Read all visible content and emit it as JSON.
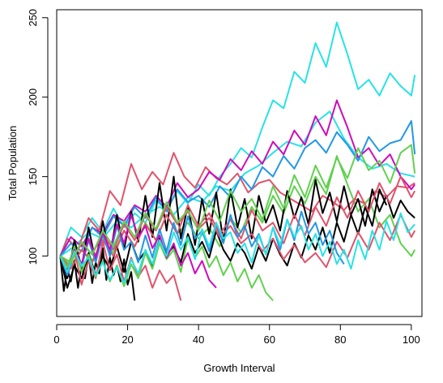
{
  "chart_data": {
    "type": "line",
    "title": "",
    "xlabel": "Growth Interval",
    "ylabel": "Total Population",
    "xlim": [
      0,
      103
    ],
    "ylim": [
      62,
      255
    ],
    "xticks": [
      0,
      20,
      40,
      60,
      80,
      100
    ],
    "yticks": [
      100,
      150,
      200,
      250
    ],
    "grid": false,
    "legend": "none",
    "colors": [
      "#000000",
      "#df536b",
      "#61d04f",
      "#2297e6",
      "#28e2e5",
      "#cd0bbc"
    ],
    "series": [
      {
        "color": "#28e2e5",
        "x": [
          1,
          4,
          7,
          10,
          13,
          16,
          19,
          22,
          25,
          28,
          31,
          34,
          37,
          40,
          43,
          46,
          49,
          52,
          55,
          58,
          61,
          64,
          67,
          70,
          73,
          76,
          79,
          82,
          85,
          88,
          91,
          94,
          97,
          100,
          101
        ],
        "y": [
          100,
          118,
          112,
          124,
          115,
          130,
          118,
          127,
          121,
          135,
          129,
          141,
          133,
          145,
          138,
          150,
          158,
          168,
          162,
          181,
          198,
          193,
          216,
          209,
          234,
          219,
          247,
          227,
          205,
          211,
          201,
          215,
          207,
          201,
          214
        ]
      },
      {
        "color": "#28e2e5",
        "x": [
          1,
          5,
          9,
          13,
          17,
          21,
          25,
          29,
          33,
          37,
          41,
          45,
          49,
          53,
          57,
          61,
          65,
          69,
          73,
          77,
          81,
          85,
          89,
          93,
          97,
          101
        ],
        "y": [
          100,
          106,
          115,
          111,
          122,
          118,
          126,
          131,
          126,
          137,
          134,
          144,
          141,
          152,
          157,
          165,
          172,
          169,
          184,
          191,
          174,
          162,
          155,
          158,
          152,
          150
        ]
      },
      {
        "color": "#df536b",
        "x": [
          1,
          3,
          6,
          9,
          12,
          15,
          18,
          21,
          24,
          27,
          30,
          33,
          36,
          39,
          42,
          45,
          48,
          51,
          54,
          57,
          60,
          63,
          66,
          69,
          72,
          75,
          78,
          81,
          84,
          87,
          90,
          93,
          96,
          99,
          101
        ],
        "y": [
          100,
          111,
          104,
          124,
          116,
          141,
          132,
          158,
          142,
          153,
          145,
          165,
          150,
          143,
          156,
          149,
          145,
          152,
          140,
          146,
          148,
          140,
          136,
          132,
          128,
          138,
          134,
          129,
          136,
          133,
          141,
          137,
          144,
          143,
          146
        ]
      },
      {
        "color": "#cd0bbc",
        "x": [
          1,
          4,
          7,
          10,
          13,
          16,
          19,
          22,
          25,
          28,
          31,
          34,
          37,
          40,
          43,
          46,
          49,
          52,
          55,
          58,
          61,
          64,
          67,
          70,
          73,
          76,
          79,
          82,
          85,
          88,
          91,
          94,
          97,
          100,
          101
        ],
        "y": [
          100,
          112,
          106,
          118,
          114,
          126,
          122,
          132,
          128,
          138,
          131,
          146,
          137,
          142,
          153,
          148,
          161,
          154,
          166,
          158,
          172,
          164,
          179,
          170,
          188,
          176,
          198,
          181,
          162,
          168,
          157,
          164,
          150,
          142,
          145
        ]
      },
      {
        "color": "#2297e6",
        "x": [
          1,
          4,
          7,
          10,
          13,
          16,
          19,
          22,
          25,
          28,
          31,
          34,
          37,
          40,
          43,
          46,
          49,
          52,
          55,
          58,
          61,
          64,
          67,
          70,
          73,
          76,
          79,
          82,
          85,
          88,
          91,
          94,
          97,
          100,
          101
        ],
        "y": [
          100,
          108,
          103,
          118,
          112,
          125,
          119,
          131,
          124,
          137,
          128,
          142,
          134,
          138,
          131,
          144,
          137,
          150,
          142,
          156,
          150,
          163,
          155,
          168,
          173,
          165,
          178,
          170,
          160,
          175,
          166,
          171,
          173,
          185,
          164
        ]
      },
      {
        "color": "#61d04f",
        "x": [
          1,
          4,
          7,
          10,
          13,
          16,
          19,
          22,
          25,
          28,
          31,
          34,
          37,
          40,
          43,
          46,
          49,
          52,
          55,
          58,
          61,
          64,
          67,
          70,
          73,
          76,
          79,
          82,
          85,
          88,
          91,
          94,
          97,
          100,
          101
        ],
        "y": [
          100,
          94,
          104,
          97,
          111,
          102,
          116,
          106,
          121,
          110,
          126,
          114,
          121,
          111,
          118,
          106,
          124,
          115,
          131,
          121,
          138,
          127,
          144,
          133,
          150,
          139,
          163,
          145,
          128,
          136,
          118,
          126,
          108,
          100,
          104
        ]
      },
      {
        "color": "#000000",
        "x": [
          1,
          3,
          5,
          7,
          9,
          11,
          13,
          15,
          17,
          19,
          21,
          23,
          25,
          27,
          29,
          31,
          33,
          35,
          37,
          39,
          41,
          43,
          45,
          47,
          49,
          51,
          53,
          55,
          57,
          59,
          61,
          63,
          65,
          67,
          69,
          71,
          73,
          75,
          77,
          79,
          81,
          83,
          85,
          87,
          89,
          91,
          93,
          95,
          97,
          99,
          101
        ],
        "y": [
          100,
          86,
          110,
          93,
          118,
          96,
          122,
          100,
          126,
          104,
          128,
          109,
          138,
          112,
          146,
          116,
          150,
          111,
          132,
          107,
          136,
          114,
          140,
          109,
          142,
          118,
          136,
          111,
          138,
          121,
          132,
          116,
          141,
          124,
          137,
          120,
          148,
          127,
          140,
          122,
          144,
          126,
          136,
          119,
          142,
          128,
          138,
          124,
          135,
          128,
          124
        ]
      },
      {
        "color": "#000000",
        "x": [
          1,
          3,
          5,
          7,
          9,
          11,
          13,
          15,
          17,
          19,
          21,
          23,
          25,
          27,
          29,
          31,
          33,
          35,
          37,
          39,
          41,
          43,
          45,
          47,
          49,
          51,
          53,
          55,
          57,
          59,
          61,
          63,
          65,
          67,
          69,
          71,
          73,
          75,
          77,
          79,
          81,
          83,
          85,
          87,
          89,
          91,
          93
        ],
        "y": [
          100,
          80,
          94,
          86,
          102,
          88,
          100,
          92,
          106,
          90,
          109,
          97,
          103,
          94,
          111,
          101,
          106,
          96,
          114,
          102,
          109,
          99,
          116,
          104,
          97,
          108,
          102,
          92,
          106,
          97,
          111,
          101,
          94,
          108,
          99,
          113,
          104,
          118,
          102,
          121,
          109,
          126,
          114,
          131,
          119,
          142,
          132
        ]
      },
      {
        "color": "#000000",
        "x": [
          1,
          2,
          3,
          4,
          5,
          6,
          7,
          8,
          9,
          10,
          11,
          12,
          13,
          14,
          15,
          16,
          17,
          18,
          19,
          20,
          21,
          22
        ],
        "y": [
          100,
          78,
          92,
          84,
          97,
          80,
          94,
          86,
          101,
          83,
          96,
          89,
          105,
          85,
          99,
          88,
          94,
          84,
          98,
          82,
          90,
          72
        ]
      },
      {
        "color": "#df536b",
        "x": [
          1,
          3,
          5,
          7,
          9,
          11,
          13,
          15,
          17,
          19,
          21,
          23,
          25,
          27,
          29,
          31,
          33,
          35
        ],
        "y": [
          100,
          89,
          104,
          82,
          97,
          86,
          109,
          91,
          101,
          84,
          99,
          87,
          94,
          80,
          91,
          83,
          88,
          72
        ]
      },
      {
        "color": "#df536b",
        "x": [
          1,
          4,
          7,
          10,
          13,
          16,
          19,
          22,
          25,
          28,
          31,
          34,
          37,
          40,
          43,
          46,
          49,
          52,
          55,
          58,
          61,
          64,
          67,
          70,
          73,
          76,
          79,
          82,
          85,
          88,
          91,
          94,
          97,
          100,
          101
        ],
        "y": [
          100,
          96,
          108,
          101,
          114,
          104,
          120,
          110,
          126,
          116,
          131,
          120,
          128,
          117,
          124,
          112,
          119,
          108,
          114,
          103,
          111,
          98,
          107,
          96,
          102,
          93,
          109,
          99,
          115,
          104,
          121,
          110,
          126,
          112,
          116
        ]
      },
      {
        "color": "#df536b",
        "x": [
          1,
          4,
          7,
          10,
          13,
          16,
          19,
          22,
          25,
          28,
          31,
          34,
          37,
          40,
          43,
          46,
          49,
          52,
          55,
          58,
          61,
          64,
          67,
          70,
          73,
          76,
          79,
          82,
          85,
          88,
          91,
          94,
          97,
          100,
          101
        ],
        "y": [
          100,
          92,
          104,
          96,
          110,
          100,
          116,
          106,
          120,
          110,
          126,
          114,
          132,
          119,
          127,
          114,
          123,
          111,
          129,
          116,
          121,
          108,
          126,
          113,
          131,
          119,
          137,
          124,
          141,
          128,
          146,
          133,
          150,
          137,
          141
        ]
      },
      {
        "color": "#2297e6",
        "x": [
          1,
          3,
          5,
          7,
          9,
          11,
          13,
          15,
          17,
          19,
          21,
          23,
          25,
          27,
          29,
          31,
          33,
          35,
          37,
          39,
          41,
          43,
          45,
          47,
          49,
          51,
          53,
          55,
          57,
          59,
          61,
          63,
          65,
          67,
          69,
          71,
          73,
          75,
          77,
          79,
          81
        ],
        "y": [
          100,
          88,
          103,
          93,
          110,
          96,
          114,
          100,
          119,
          104,
          109,
          96,
          113,
          99,
          117,
          103,
          121,
          107,
          125,
          111,
          116,
          103,
          121,
          108,
          126,
          112,
          119,
          106,
          114,
          101,
          118,
          104,
          123,
          110,
          128,
          114,
          121,
          107,
          116,
          102,
          95
        ]
      },
      {
        "color": "#61d04f",
        "x": [
          1,
          3,
          5,
          7,
          9,
          11,
          13,
          15,
          17,
          19,
          21,
          23,
          25,
          27,
          29,
          31,
          33,
          35,
          37,
          39,
          41,
          43,
          45,
          47,
          49,
          51,
          53,
          55,
          57,
          59,
          61
        ],
        "y": [
          100,
          93,
          106,
          90,
          101,
          87,
          97,
          84,
          94,
          81,
          95,
          86,
          102,
          92,
          108,
          98,
          104,
          90,
          111,
          99,
          106,
          93,
          100,
          88,
          96,
          84,
          92,
          80,
          88,
          77,
          72
        ]
      },
      {
        "color": "#cd0bbc",
        "x": [
          1,
          3,
          5,
          7,
          9,
          11,
          13,
          15,
          17,
          19,
          21,
          23,
          25,
          27,
          29,
          31,
          33,
          35,
          37,
          39,
          41,
          43,
          45
        ],
        "y": [
          100,
          90,
          104,
          95,
          111,
          99,
          115,
          104,
          120,
          108,
          126,
          112,
          119,
          105,
          113,
          99,
          108,
          94,
          102,
          89,
          97,
          85,
          80
        ]
      },
      {
        "color": "#28e2e5",
        "x": [
          1,
          3,
          5,
          7,
          9,
          11,
          13,
          15,
          17,
          19,
          21,
          23,
          25,
          27,
          29,
          31,
          33,
          35,
          37,
          39,
          41,
          43,
          45,
          47,
          49,
          51,
          53,
          55,
          57,
          59,
          61,
          63,
          65,
          67,
          69,
          71,
          73,
          75,
          77,
          79,
          81,
          83,
          85,
          87,
          89,
          91,
          93,
          95,
          97,
          99,
          101
        ],
        "y": [
          100,
          90,
          103,
          94,
          99,
          88,
          96,
          85,
          93,
          83,
          98,
          89,
          104,
          95,
          110,
          100,
          115,
          104,
          112,
          98,
          117,
          106,
          121,
          111,
          115,
          102,
          108,
          96,
          113,
          101,
          118,
          107,
          123,
          112,
          119,
          104,
          114,
          100,
          109,
          95,
          104,
          92,
          110,
          98,
          116,
          104,
          122,
          110,
          127,
          115,
          120
        ]
      },
      {
        "color": "#61d04f",
        "x": [
          1,
          4,
          7,
          10,
          13,
          16,
          19,
          22,
          25,
          28,
          31,
          34,
          37,
          40,
          43,
          46,
          49,
          52,
          55,
          58,
          61,
          64,
          67,
          70,
          73,
          76,
          79,
          82,
          85,
          88,
          91,
          94,
          97,
          100,
          101
        ],
        "y": [
          100,
          96,
          109,
          101,
          116,
          106,
          122,
          112,
          127,
          117,
          134,
          121,
          129,
          116,
          135,
          122,
          141,
          128,
          136,
          123,
          144,
          130,
          151,
          137,
          157,
          143,
          162,
          149,
          168,
          154,
          160,
          146,
          165,
          170,
          152
        ]
      }
    ]
  }
}
